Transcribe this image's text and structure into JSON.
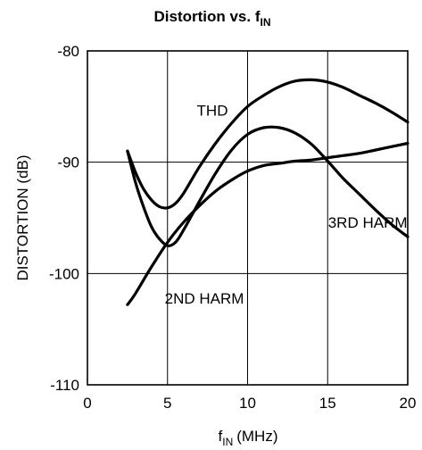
{
  "chart_data": {
    "type": "line",
    "title": "Distortion vs. f",
    "title_subscript": "IN",
    "xlabel": "f",
    "xlabel_subscript": "IN",
    "xlabel_unit": "(MHz)",
    "ylabel": "DISTORTION (dB)",
    "xlim": [
      0,
      20
    ],
    "ylim": [
      -110,
      -80
    ],
    "xticks": [
      0,
      5,
      10,
      15,
      20
    ],
    "yticks": [
      -80,
      -90,
      -100,
      -110
    ],
    "grid": true,
    "series": [
      {
        "name": "THD",
        "x": [
          2.5,
          3,
          3.5,
          4,
          4.5,
          5,
          5.5,
          6,
          7,
          8,
          9,
          10,
          11,
          12,
          13,
          14,
          15,
          16,
          17,
          18,
          19,
          20
        ],
        "y": [
          -89,
          -90.9,
          -92.4,
          -93.4,
          -94,
          -94.1,
          -93.7,
          -92.8,
          -90.4,
          -88.3,
          -86.5,
          -85,
          -84,
          -83.2,
          -82.7,
          -82.6,
          -82.8,
          -83.3,
          -84,
          -84.7,
          -85.5,
          -86.4
        ]
      },
      {
        "name": "2ND HARM",
        "x": [
          2.5,
          3,
          4,
          5,
          6,
          7,
          8,
          9,
          10,
          11,
          12,
          13,
          14,
          15,
          16,
          17,
          18,
          19,
          20
        ],
        "y": [
          -102.8,
          -101.8,
          -99.4,
          -97.2,
          -95.4,
          -93.9,
          -92.6,
          -91.6,
          -90.8,
          -90.3,
          -90.1,
          -89.9,
          -89.8,
          -89.6,
          -89.4,
          -89.2,
          -88.9,
          -88.6,
          -88.3
        ]
      },
      {
        "name": "3RD HARM",
        "x": [
          2.5,
          3,
          3.5,
          4,
          4.5,
          5,
          5.5,
          6,
          7,
          8,
          9,
          10,
          11,
          12,
          13,
          14,
          15,
          16,
          17,
          18,
          19,
          20
        ],
        "y": [
          -89,
          -91.8,
          -94,
          -95.8,
          -96.9,
          -97.5,
          -97.2,
          -96.1,
          -93.5,
          -91,
          -88.9,
          -87.5,
          -86.9,
          -86.9,
          -87.4,
          -88.4,
          -89.9,
          -91.5,
          -92.9,
          -94.3,
          -95.6,
          -96.7
        ]
      }
    ],
    "annotations": [
      {
        "text": "THD",
        "x": 7.8,
        "y": -85.8
      },
      {
        "text": "3RD HARM",
        "x": 17.5,
        "y": -95.9
      },
      {
        "text": "2ND HARM",
        "x": 7.3,
        "y": -102.7
      }
    ]
  }
}
